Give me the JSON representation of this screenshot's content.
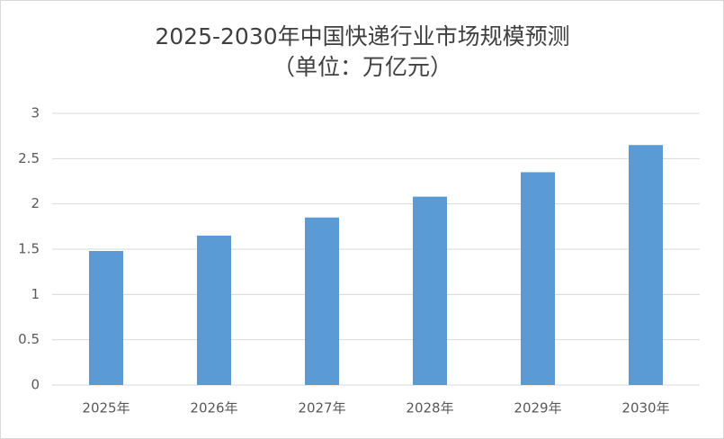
{
  "chart_data": {
    "type": "bar",
    "title": "2025-2030年中国快递行业市场规模预测",
    "subtitle": "（单位：万亿元）",
    "categories": [
      "2025年",
      "2026年",
      "2027年",
      "2028年",
      "2029年",
      "2030年"
    ],
    "values": [
      1.48,
      1.65,
      1.85,
      2.08,
      2.35,
      2.65
    ],
    "color": "#5b9bd5",
    "ylim": [
      0,
      3
    ],
    "yticks": [
      0,
      0.5,
      1,
      1.5,
      2,
      2.5,
      3
    ],
    "grid": true
  }
}
